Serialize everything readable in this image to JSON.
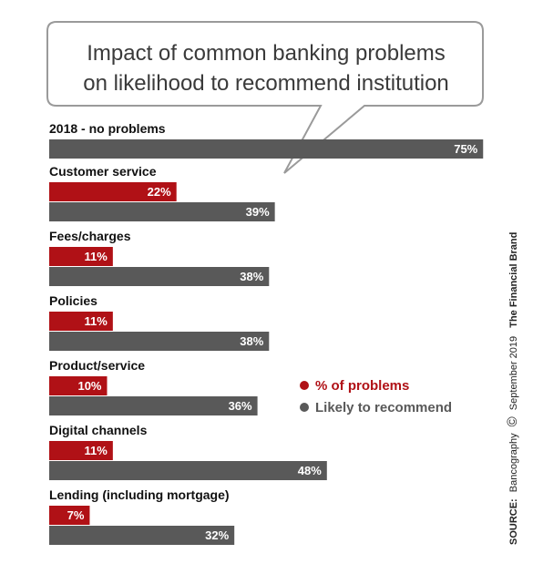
{
  "chart_data": {
    "type": "bar",
    "title_lines": [
      "Impact of common banking problems",
      "on likelihood to recommend institution"
    ],
    "categories": [
      "2018 - no problems",
      "Customer service",
      "Fees/charges",
      "Policies",
      "Product/service",
      "Digital channels",
      "Lending (including mortgage)"
    ],
    "series": [
      {
        "name": "% of problems",
        "values": [
          null,
          22,
          11,
          11,
          10,
          11,
          7
        ],
        "labels": [
          "",
          "22%",
          "11%",
          "11%",
          "10%",
          "11%",
          "7%"
        ],
        "color": "#b01116"
      },
      {
        "name": "Likely to recommend",
        "values": [
          75,
          39,
          38,
          38,
          36,
          48,
          32
        ],
        "labels": [
          "75%",
          "39%",
          "38%",
          "38%",
          "36%",
          "48%",
          "32%"
        ],
        "color": "#595959"
      }
    ],
    "legend_position": "right"
  },
  "source": {
    "label": "SOURCE:",
    "text": "Bancography",
    "copyright": "©",
    "date": "September 2019",
    "brand": "The Financial Brand"
  }
}
